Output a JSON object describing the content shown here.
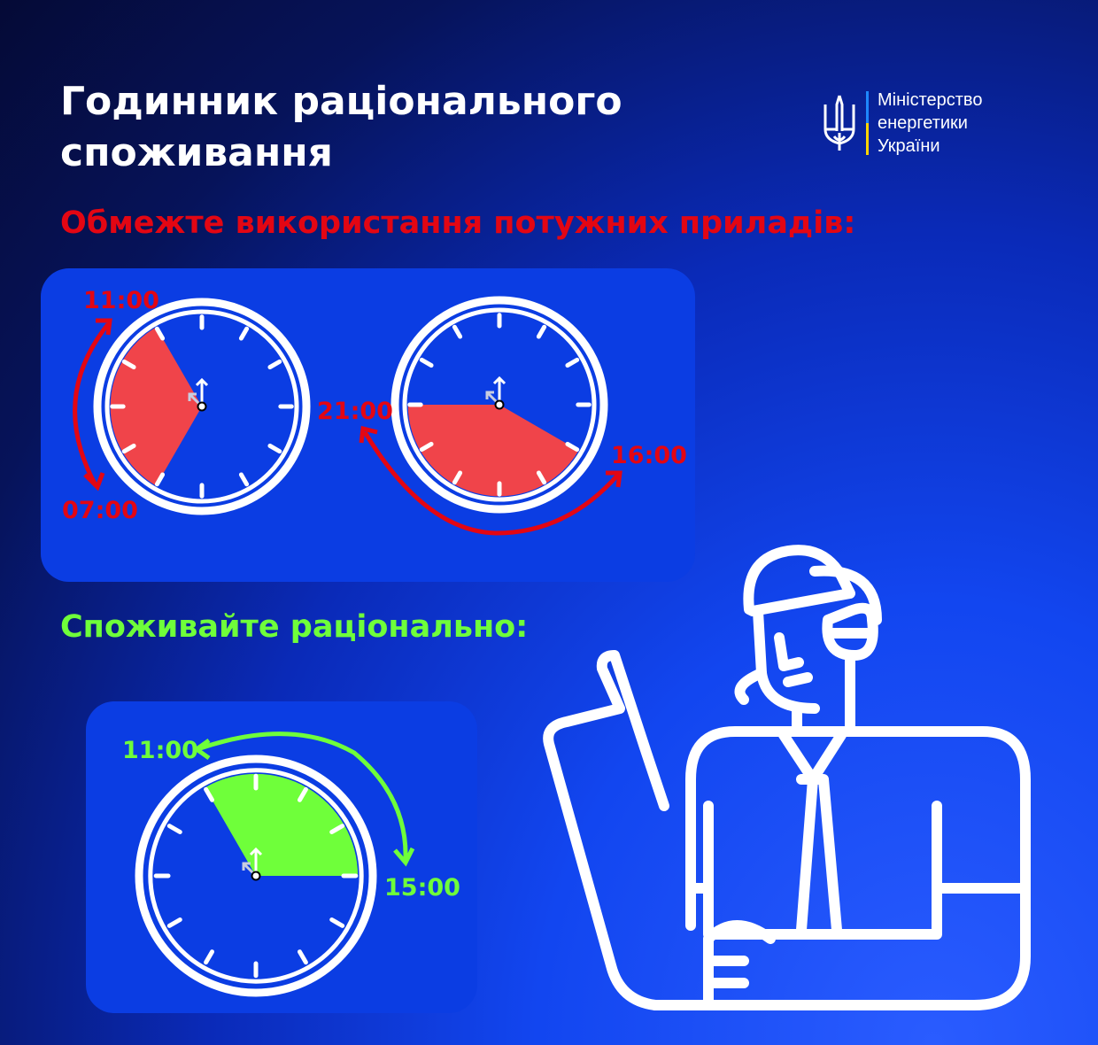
{
  "title": "Годинник раціонального споживання",
  "logo": {
    "line1": "Міністерство",
    "line2": "енергетики",
    "line3": "України",
    "emblem": "trident-icon"
  },
  "limit_section": {
    "heading": "Обмежте використання потужних приладів:",
    "clocks": [
      {
        "start": "07:00",
        "end": "11:00"
      },
      {
        "start": "16:00",
        "end": "21:00"
      }
    ],
    "color": "#e30613",
    "fill": "#f0444a"
  },
  "rational_section": {
    "heading": "Споживайте раціонально:",
    "clocks": [
      {
        "start": "11:00",
        "end": "15:00"
      }
    ],
    "color": "#6fff3a",
    "fill": "#6fff3a"
  }
}
